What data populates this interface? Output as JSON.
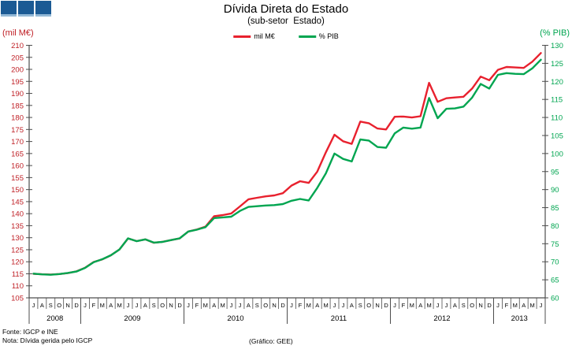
{
  "header": {
    "title": "Dívida Direta do Estado",
    "subtitle": "(sub-setor  Estado)"
  },
  "footer": {
    "fonte": "Fonte: IGCP e INE",
    "nota": "Nota: Dívida gerida pelo IGCP",
    "grafico": "(Gráfico: GEE)"
  },
  "chart_data": {
    "type": "line",
    "title": "Dívida Direta do Estado",
    "subtitle": "(sub-setor  Estado)",
    "left_axis": {
      "label": "(mil M€)",
      "min": 105,
      "max": 210,
      "step": 5,
      "color": "#bf1e24"
    },
    "right_axis": {
      "label": "(% PIB)",
      "min": 60,
      "max": 130,
      "step": 5,
      "color": "#00a550"
    },
    "x_axis": {
      "years": [
        {
          "label": "2008",
          "months": [
            "J",
            "A",
            "S",
            "O",
            "N",
            "D"
          ]
        },
        {
          "label": "2009",
          "months": [
            "J",
            "F",
            "M",
            "A",
            "M",
            "J",
            "J",
            "A",
            "S",
            "O",
            "N",
            "D"
          ]
        },
        {
          "label": "2010",
          "months": [
            "J",
            "F",
            "M",
            "A",
            "M",
            "J",
            "J",
            "A",
            "S",
            "O",
            "N",
            "D"
          ]
        },
        {
          "label": "2011",
          "months": [
            "J",
            "F",
            "M",
            "A",
            "M",
            "J",
            "J",
            "A",
            "S",
            "O",
            "N",
            "D"
          ]
        },
        {
          "label": "2012",
          "months": [
            "J",
            "F",
            "M",
            "A",
            "M",
            "J",
            "J",
            "A",
            "S",
            "O",
            "N",
            "D"
          ]
        },
        {
          "label": "2013",
          "months": [
            "J",
            "F",
            "M",
            "A",
            "M",
            "J"
          ]
        }
      ]
    },
    "series": [
      {
        "name": "mil M€",
        "axis": "left",
        "color": "#e8212e",
        "values": [
          115.0,
          114.8,
          114.7,
          114.9,
          115.3,
          116.0,
          117.5,
          119.9,
          121.0,
          122.7,
          125.1,
          129.7,
          128.6,
          129.3,
          127.9,
          128.3,
          129.0,
          129.7,
          132.6,
          133.4,
          134.6,
          138.9,
          139.4,
          140.1,
          143.0,
          146.0,
          146.6,
          147.2,
          147.6,
          148.5,
          151.7,
          153.5,
          152.8,
          157.5,
          165.5,
          172.8,
          170.1,
          169.0,
          178.3,
          177.6,
          175.4,
          175.0,
          180.3,
          180.4,
          180.0,
          180.5,
          194.4,
          186.5,
          188.0,
          188.3,
          188.6,
          192.0,
          197.0,
          195.5,
          199.8,
          201.0,
          200.8,
          200.6,
          203.2,
          206.8
        ]
      },
      {
        "name": "% PIB",
        "axis": "right",
        "color": "#00a550",
        "values": [
          66.7,
          66.5,
          66.4,
          66.6,
          66.9,
          67.3,
          68.3,
          69.9,
          70.7,
          71.8,
          73.4,
          76.5,
          75.7,
          76.2,
          75.3,
          75.5,
          76.0,
          76.5,
          78.4,
          78.9,
          79.6,
          82.1,
          82.3,
          82.5,
          84.1,
          85.2,
          85.4,
          85.6,
          85.7,
          86.0,
          86.9,
          87.4,
          87.0,
          90.5,
          94.5,
          100.0,
          98.5,
          97.8,
          103.9,
          103.6,
          101.8,
          101.6,
          105.6,
          107.2,
          106.9,
          107.2,
          115.4,
          109.8,
          112.4,
          112.5,
          113.0,
          115.5,
          119.3,
          118.0,
          121.8,
          122.3,
          122.1,
          122.0,
          123.6,
          126.0
        ]
      }
    ]
  }
}
